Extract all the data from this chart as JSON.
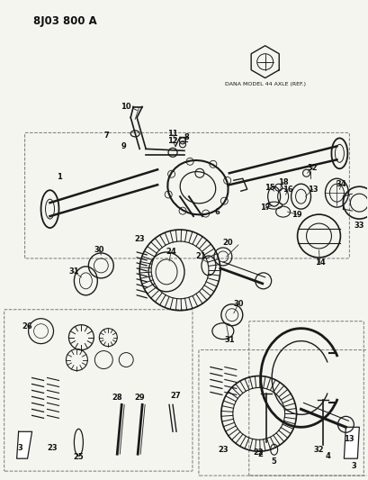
{
  "title": "8J03 800 A",
  "dana_label": "DANA MODEL 44 AXLE (REF.)",
  "bg_color": "#f5f5f0",
  "line_color": "#1a1a1a",
  "text_color": "#111111",
  "fig_width": 4.09,
  "fig_height": 5.33,
  "dpi": 100
}
